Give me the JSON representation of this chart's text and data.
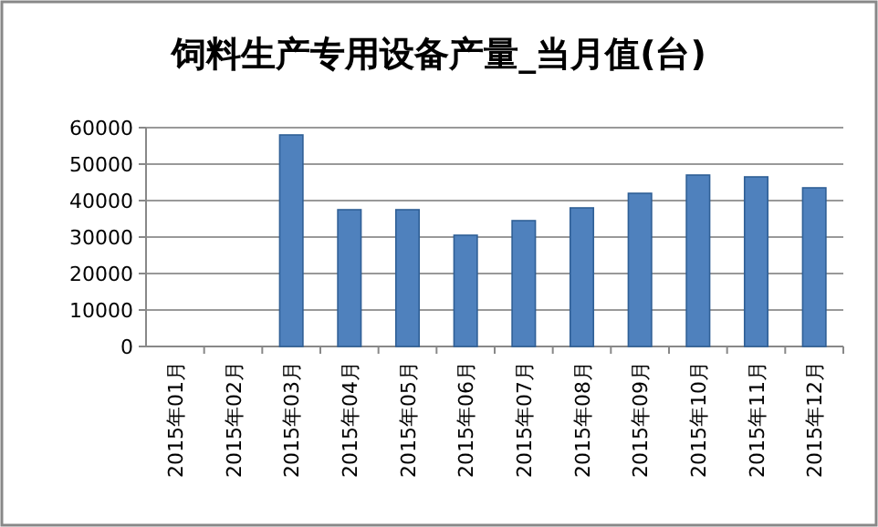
{
  "chart_data": {
    "type": "bar",
    "title": "饲料生产专用设备产量_当月值(台)",
    "categories": [
      "2015年01月",
      "2015年02月",
      "2015年03月",
      "2015年04月",
      "2015年05月",
      "2015年06月",
      "2015年07月",
      "2015年08月",
      "2015年09月",
      "2015年10月",
      "2015年11月",
      "2015年12月"
    ],
    "values": [
      null,
      null,
      58000,
      37500,
      37500,
      30500,
      34500,
      38000,
      42000,
      47000,
      46500,
      43500
    ],
    "color": "#4f81bd",
    "ylim": [
      0,
      60000
    ],
    "yticks": [
      0,
      10000,
      20000,
      30000,
      40000,
      50000,
      60000
    ],
    "grid": "y"
  }
}
